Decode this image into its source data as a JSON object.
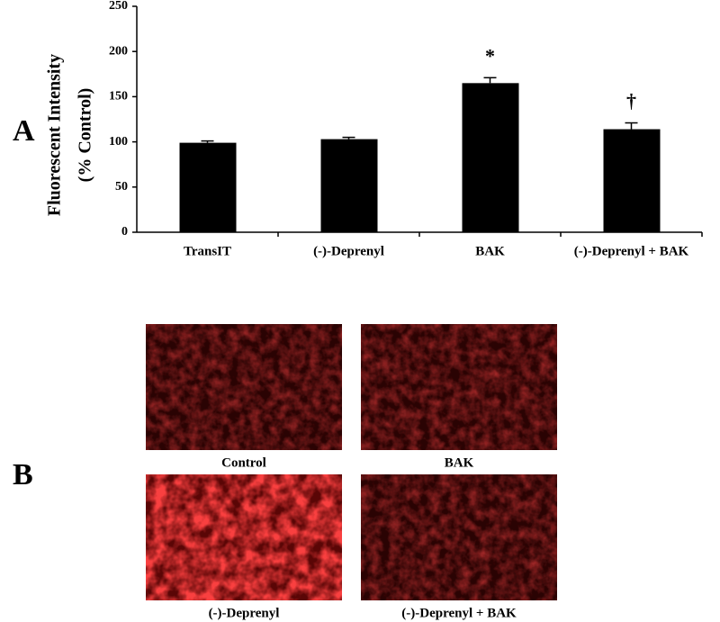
{
  "panels": {
    "a": "A",
    "b": "B"
  },
  "chart_data": {
    "type": "bar",
    "y_label_lines": [
      "Fluorescent Intensity",
      "(% Control)"
    ],
    "categories": [
      "TransIT",
      "(-)-Deprenyl",
      "BAK",
      "(-)-Deprenyl  + BAK"
    ],
    "values": [
      99,
      103,
      165,
      114
    ],
    "errors": [
      2,
      2,
      6,
      7
    ],
    "annotations": [
      null,
      null,
      "*",
      "†"
    ],
    "color": "#000000",
    "ylim": [
      0,
      250
    ],
    "yticks": [
      0,
      50,
      100,
      150,
      200,
      250
    ],
    "grid": false
  },
  "images": [
    {
      "caption": "Control",
      "style": "dim"
    },
    {
      "caption": "BAK",
      "style": "dim"
    },
    {
      "caption": "(-)-Deprenyl",
      "style": "bright"
    },
    {
      "caption": "(-)-Deprenyl  + BAK",
      "style": "dim"
    }
  ]
}
